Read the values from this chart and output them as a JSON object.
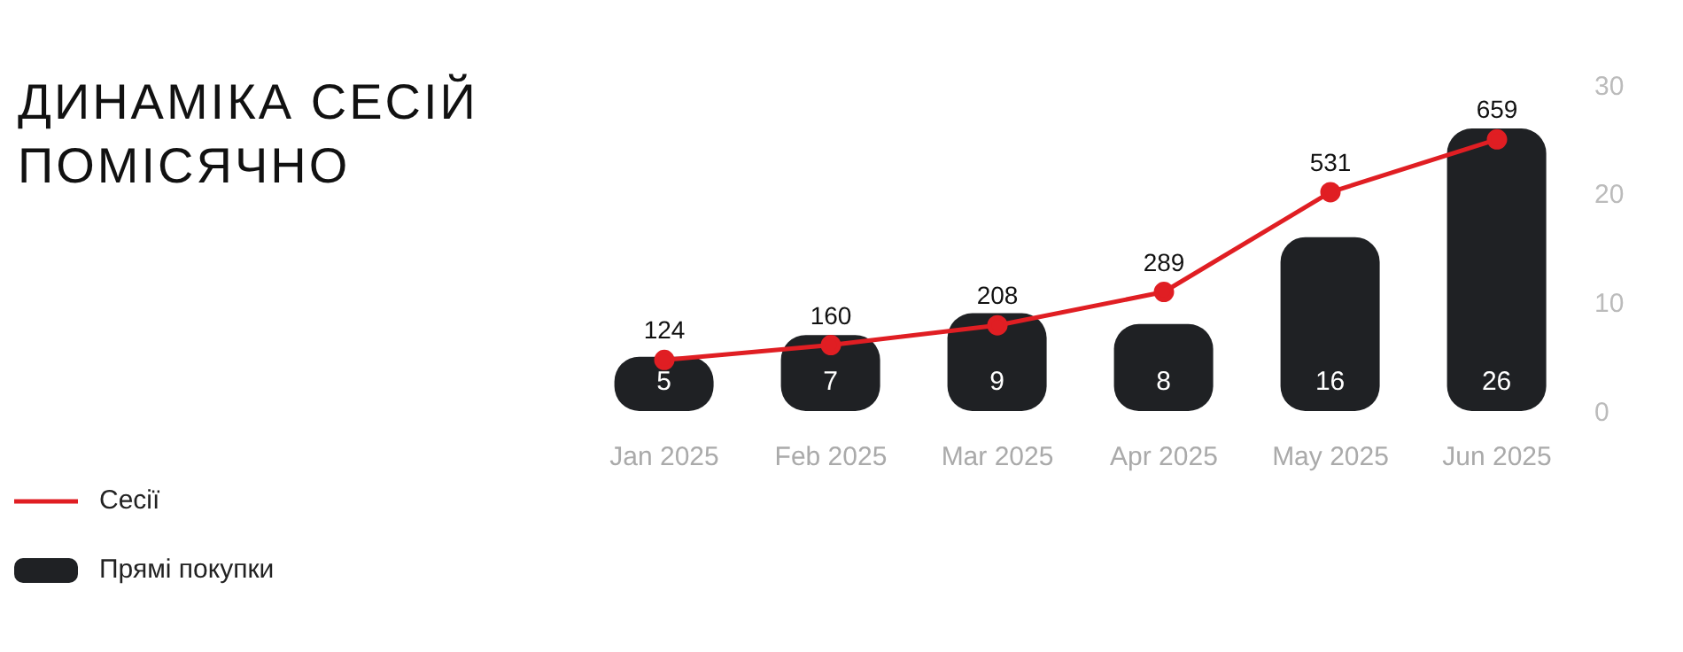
{
  "chart_data": {
    "type": "bar",
    "title": "ДИНАМІКА СЕСІЙ ПОМІСЯЧНО",
    "categories": [
      "Jan 2025",
      "Feb 2025",
      "Mar 2025",
      "Apr 2025",
      "May 2025",
      "Jun 2025"
    ],
    "series": [
      {
        "name": "Сесії",
        "type": "line",
        "axis": "y2",
        "color": "#e01e23",
        "values": [
          124,
          160,
          208,
          289,
          531,
          659
        ]
      },
      {
        "name": "Прямі покупки",
        "color": "#1f2124",
        "values": [
          5,
          7,
          9,
          8,
          16,
          26
        ]
      }
    ],
    "ylim": [
      0,
      30
    ],
    "yticks": [
      0,
      10,
      20,
      30
    ],
    "data_labels": true,
    "legend": "bottom left",
    "marker": "circle",
    "line_style": "solid"
  }
}
